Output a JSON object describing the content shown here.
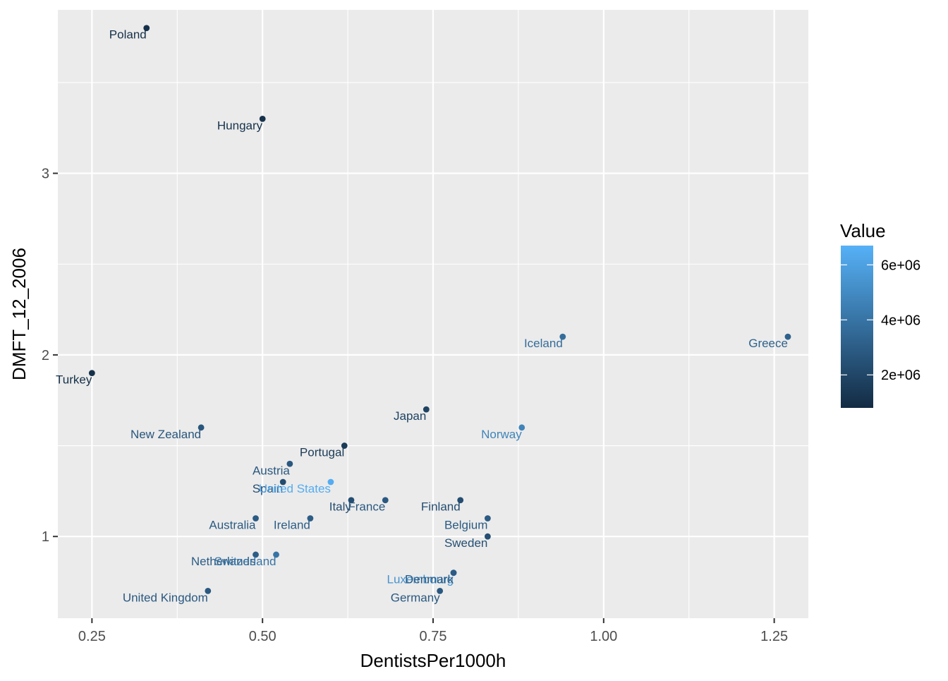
{
  "chart_data": {
    "type": "scatter",
    "xlabel": "DentistsPer1000h",
    "ylabel": "DMFT_12_2006",
    "xlim": [
      0.2,
      1.3
    ],
    "ylim": [
      0.55,
      3.9
    ],
    "x_ticks": [
      {
        "value": 0.25,
        "label": "0.25"
      },
      {
        "value": 0.5,
        "label": "0.50"
      },
      {
        "value": 0.75,
        "label": "0.75"
      },
      {
        "value": 1.0,
        "label": "1.00"
      },
      {
        "value": 1.25,
        "label": "1.25"
      }
    ],
    "y_ticks": [
      {
        "value": 1,
        "label": "1"
      },
      {
        "value": 2,
        "label": "2"
      },
      {
        "value": 3,
        "label": "3"
      }
    ],
    "grid": true,
    "colorbar": {
      "title": "Value",
      "range": [
        800000,
        6700000
      ],
      "low_color": "#132b43",
      "high_color": "#56b1f7",
      "ticks": [
        {
          "value": 2000000,
          "label": "2e+06"
        },
        {
          "value": 4000000,
          "label": "4e+06"
        },
        {
          "value": 6000000,
          "label": "6e+06"
        }
      ],
      "legend_position": "right"
    },
    "points": [
      {
        "label": "Poland",
        "x": 0.33,
        "y": 3.8,
        "value": 1000000
      },
      {
        "label": "Hungary",
        "x": 0.5,
        "y": 3.3,
        "value": 1100000
      },
      {
        "label": "Iceland",
        "x": 0.94,
        "y": 2.1,
        "value": 3700000
      },
      {
        "label": "Greece",
        "x": 1.27,
        "y": 2.1,
        "value": 3200000
      },
      {
        "label": "Turkey",
        "x": 0.25,
        "y": 1.9,
        "value": 1000000
      },
      {
        "label": "Japan",
        "x": 0.74,
        "y": 1.7,
        "value": 1800000
      },
      {
        "label": "New Zealand",
        "x": 0.41,
        "y": 1.6,
        "value": 2700000
      },
      {
        "label": "Norway",
        "x": 0.88,
        "y": 1.6,
        "value": 4700000
      },
      {
        "label": "Portugal",
        "x": 0.62,
        "y": 1.5,
        "value": 1500000
      },
      {
        "label": "Austria",
        "x": 0.54,
        "y": 1.4,
        "value": 2800000
      },
      {
        "label": "Spain",
        "x": 0.53,
        "y": 1.3,
        "value": 2200000
      },
      {
        "label": "United States",
        "x": 0.6,
        "y": 1.3,
        "value": 6500000
      },
      {
        "label": "Italy",
        "x": 0.63,
        "y": 1.2,
        "value": 2300000
      },
      {
        "label": "France",
        "x": 0.68,
        "y": 1.2,
        "value": 2800000
      },
      {
        "label": "Finland",
        "x": 0.79,
        "y": 1.2,
        "value": 2300000
      },
      {
        "label": "Australia",
        "x": 0.49,
        "y": 1.1,
        "value": 2900000
      },
      {
        "label": "Ireland",
        "x": 0.57,
        "y": 1.1,
        "value": 3000000
      },
      {
        "label": "Belgium",
        "x": 0.83,
        "y": 1.1,
        "value": 2900000
      },
      {
        "label": "Sweden",
        "x": 0.83,
        "y": 1.0,
        "value": 2400000
      },
      {
        "label": "Netherlands",
        "x": 0.49,
        "y": 0.9,
        "value": 3000000
      },
      {
        "label": "Switzerland",
        "x": 0.52,
        "y": 0.9,
        "value": 4000000
      },
      {
        "label": "Luxembourg",
        "x": 0.78,
        "y": 0.8,
        "value": 5400000
      },
      {
        "label": "Denmark",
        "x": 0.78,
        "y": 0.8,
        "value": 2900000
      },
      {
        "label": "Germany",
        "x": 0.76,
        "y": 0.7,
        "value": 2800000
      },
      {
        "label": "United Kingdom",
        "x": 0.42,
        "y": 0.7,
        "value": 2800000
      }
    ]
  }
}
